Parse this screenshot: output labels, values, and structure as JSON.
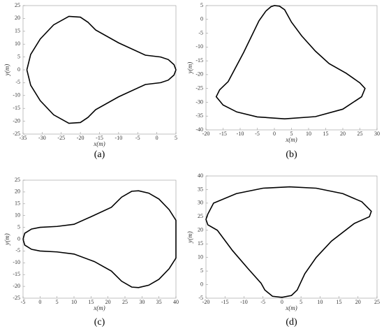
{
  "chart_data": [
    {
      "type": "line",
      "caption": "(a)",
      "x_label": "x(m)",
      "y_label": "y(m)",
      "color": "#000000",
      "grid": false,
      "xlim": [
        -35,
        5
      ],
      "ylim": [
        -25,
        25
      ],
      "xticks": [
        -35,
        -30,
        -25,
        -20,
        -15,
        -10,
        -5,
        0,
        5
      ],
      "yticks": [
        -25,
        -20,
        -15,
        -10,
        -5,
        0,
        5,
        10,
        15,
        20,
        25
      ],
      "x": [
        -34,
        -33,
        -30.5,
        -27,
        -23,
        -20,
        -18,
        -16,
        -10,
        -3,
        1,
        3,
        4.5,
        5,
        4.5,
        3,
        1,
        -3,
        -10,
        -16,
        -18,
        -20,
        -23,
        -27,
        -30.5,
        -33,
        -34
      ],
      "values": [
        0,
        6,
        12,
        17.5,
        20.8,
        20.5,
        18.5,
        15.5,
        10.5,
        5.7,
        5,
        4,
        2,
        0,
        -2,
        -4,
        -5,
        -5.7,
        -10.5,
        -15.5,
        -18.5,
        -20.5,
        -20.8,
        -17.5,
        -12,
        -6,
        0
      ]
    },
    {
      "type": "line",
      "caption": "(b)",
      "x_label": "x(m)",
      "y_label": "y(m)",
      "color": "#000000",
      "grid": false,
      "xlim": [
        -20,
        30
      ],
      "ylim": [
        -40,
        5
      ],
      "xticks": [
        -20,
        -15,
        -10,
        -5,
        0,
        5,
        10,
        15,
        20,
        25,
        30
      ],
      "yticks": [
        -40,
        -35,
        -30,
        -25,
        -20,
        -15,
        -10,
        -5,
        0,
        5
      ],
      "x": [
        -2.5,
        -1,
        0,
        1.5,
        3,
        5,
        8,
        12,
        16,
        21,
        25,
        26.5,
        25.5,
        20,
        12,
        3,
        -5,
        -11,
        -15,
        -17,
        -16,
        -13.5,
        -9,
        -4.5,
        -2.5
      ],
      "values": [
        3,
        4.6,
        5,
        4.8,
        3.5,
        -1,
        -6,
        -11.5,
        -16,
        -19.5,
        -23,
        -25,
        -28,
        -32.5,
        -35.2,
        -36,
        -35.3,
        -33.5,
        -31,
        -28,
        -25.5,
        -22.5,
        -12,
        -0.5,
        3
      ]
    },
    {
      "type": "line",
      "caption": "(c)",
      "x_label": "x(m)",
      "y_label": "y(m)",
      "color": "#000000",
      "grid": false,
      "xlim": [
        -5,
        40
      ],
      "ylim": [
        -25,
        25
      ],
      "xticks": [
        -5,
        0,
        5,
        10,
        15,
        20,
        25,
        30,
        35,
        40
      ],
      "yticks": [
        -25,
        -20,
        -15,
        -10,
        -5,
        0,
        5,
        10,
        15,
        20,
        25
      ],
      "x": [
        -5,
        -4.5,
        -2.5,
        0,
        5,
        10,
        15,
        21,
        24,
        27,
        29,
        32,
        35,
        38,
        40,
        40,
        38,
        35,
        32,
        29,
        27,
        24,
        21,
        16,
        10,
        5,
        0,
        -2.5,
        -4.5,
        -5
      ],
      "values": [
        0,
        2.5,
        4.3,
        5,
        5.4,
        6.3,
        9.5,
        13.5,
        17.8,
        20.3,
        20.5,
        19.5,
        17,
        12.5,
        8,
        -8,
        -12.5,
        -17,
        -19.5,
        -20.5,
        -20.3,
        -17.8,
        -13.5,
        -9.5,
        -6.3,
        -5.4,
        -5,
        -4.3,
        -2.5,
        0
      ]
    },
    {
      "type": "line",
      "caption": "(d)",
      "x_label": "x(m)",
      "y_label": "y(m)",
      "color": "#000000",
      "grid": false,
      "xlim": [
        -20,
        25
      ],
      "ylim": [
        -5,
        40
      ],
      "xticks": [
        -20,
        -15,
        -10,
        -5,
        0,
        5,
        10,
        15,
        20,
        25
      ],
      "yticks": [
        -5,
        0,
        5,
        10,
        15,
        20,
        25,
        30,
        35,
        40
      ],
      "x": [
        -19.5,
        -18,
        -12,
        -5,
        2,
        9,
        16,
        21,
        23.5,
        23,
        19,
        13,
        9,
        6,
        4,
        2.5,
        0,
        -2.5,
        -4.5,
        -5.5,
        -9,
        -13,
        -17,
        -19.5,
        -20,
        -19.5
      ],
      "values": [
        26,
        30,
        33.5,
        35.5,
        36,
        35.5,
        33.5,
        30.5,
        27,
        25,
        22.5,
        16,
        10,
        4,
        -2,
        -4,
        -4.7,
        -4.3,
        -2,
        0.5,
        6,
        12.5,
        20,
        22,
        24,
        26
      ]
    }
  ]
}
